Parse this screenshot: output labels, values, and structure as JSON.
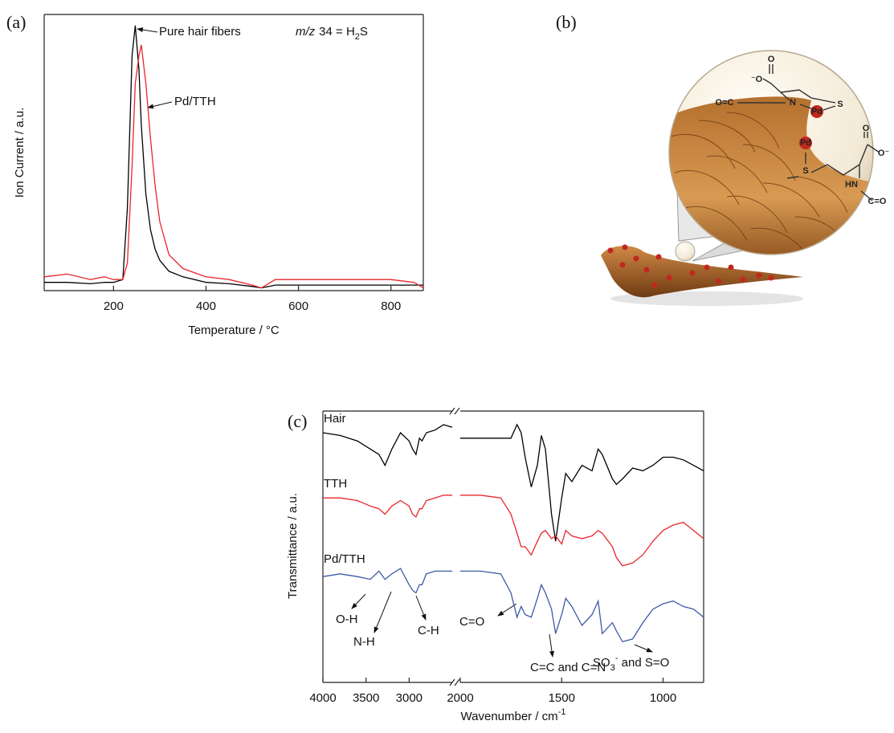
{
  "chart_data": [
    {
      "type": "line",
      "panel_label": "(a)",
      "x_label": "Temperature / °C",
      "y_label": "Ion Current / a.u.",
      "xlim": [
        50,
        870
      ],
      "xticks": [
        200,
        400,
        600,
        800
      ],
      "ylim": [
        0,
        100
      ],
      "x": [
        50,
        100,
        150,
        180,
        200,
        220,
        230,
        240,
        247,
        255,
        260,
        270,
        280,
        290,
        300,
        320,
        350,
        400,
        450,
        500,
        520,
        550,
        600,
        650,
        700,
        750,
        800,
        850,
        870
      ],
      "series": [
        {
          "name": "Pure hair fibers",
          "color": "#000000",
          "values": [
            3,
            3,
            2.5,
            3,
            3,
            4,
            30,
            85,
            96,
            80,
            60,
            35,
            22,
            15,
            11,
            7,
            5,
            3,
            2.5,
            1.5,
            1,
            2,
            2,
            2,
            2,
            2,
            2,
            2,
            2
          ]
        },
        {
          "name": "Pd/TTH",
          "color": "#e8262a",
          "values": [
            5,
            6,
            4,
            5,
            4,
            4,
            10,
            45,
            75,
            85,
            89,
            75,
            55,
            38,
            25,
            13,
            8,
            5,
            4,
            2,
            1,
            4,
            4,
            4,
            4,
            4,
            4,
            3,
            1
          ]
        }
      ],
      "annotation": {
        "parts": [
          "m/z",
          "34 = H",
          "2",
          "S"
        ]
      }
    },
    {
      "type": "line",
      "panel_label": "(c)",
      "x_label_parts": [
        "Wavenumber / cm",
        "-1"
      ],
      "y_label": "Transmittance / a.u.",
      "x_segments": [
        {
          "xlim": [
            4000,
            2500
          ],
          "xticks": [
            4000,
            3500,
            3000
          ]
        },
        {
          "xlim": [
            2000,
            800
          ],
          "xticks": [
            2000,
            1500,
            1000
          ]
        }
      ],
      "ylim": [
        0,
        100
      ],
      "x": [
        4000,
        3800,
        3600,
        3450,
        3350,
        3280,
        3200,
        3100,
        3000,
        2960,
        2920,
        2880,
        2850,
        2800,
        2700,
        2600,
        2500,
        2250,
        2000,
        1900,
        1800,
        1750,
        1720,
        1700,
        1680,
        1650,
        1620,
        1600,
        1580,
        1550,
        1530,
        1500,
        1480,
        1450,
        1400,
        1350,
        1320,
        1300,
        1250,
        1230,
        1200,
        1150,
        1100,
        1050,
        1000,
        950,
        900,
        850,
        800
      ],
      "series": [
        {
          "name": "Hair",
          "color": "#000000",
          "values": [
            92,
            91,
            89,
            86,
            84,
            80,
            86,
            92,
            89,
            86,
            84,
            90,
            89,
            92,
            93,
            95,
            94,
            null,
            90,
            90,
            90,
            90,
            95,
            92,
            83,
            72,
            80,
            91,
            86,
            62,
            52,
            68,
            77,
            74,
            80,
            78,
            86,
            84,
            75,
            73,
            75,
            79,
            78,
            80,
            83,
            83,
            82,
            80,
            78
          ]
        },
        {
          "name": "TTH",
          "color": "#e8262a",
          "values": [
            68,
            68,
            67,
            65,
            64,
            62,
            65,
            67,
            65,
            62,
            61,
            64,
            64,
            67,
            68,
            69,
            69,
            null,
            69,
            69,
            68,
            62,
            55,
            50,
            50,
            47,
            52,
            55,
            56,
            53,
            54,
            51,
            56,
            54,
            53,
            54,
            56,
            55,
            50,
            46,
            43,
            44,
            47,
            52,
            56,
            58,
            59,
            56,
            53
          ]
        },
        {
          "name": "Pd/TTH",
          "color": "#3c5aa6",
          "values": [
            39,
            40,
            39,
            38,
            41,
            38,
            40,
            42,
            36,
            34,
            33,
            36,
            36,
            40,
            41,
            41,
            41,
            null,
            41,
            41,
            40,
            33,
            24,
            28,
            25,
            24,
            31,
            36,
            33,
            27,
            18,
            25,
            31,
            28,
            21,
            25,
            30,
            18,
            22,
            19,
            15,
            16,
            22,
            27,
            29,
            30,
            28,
            27,
            24
          ]
        }
      ],
      "annotations": [
        "O-H",
        "N-H",
        "C-H",
        "C=O",
        "C=C and C=N",
        [
          "SO",
          "3",
          "-",
          " and S=O"
        ]
      ]
    }
  ],
  "diagram": {
    "panel_label": "(b)",
    "labels": [
      "O",
      "⁻O",
      "N",
      "O=C",
      "Pd",
      "S",
      "Pd",
      "S",
      "O",
      "O⁻",
      "HN",
      "C=O"
    ]
  }
}
